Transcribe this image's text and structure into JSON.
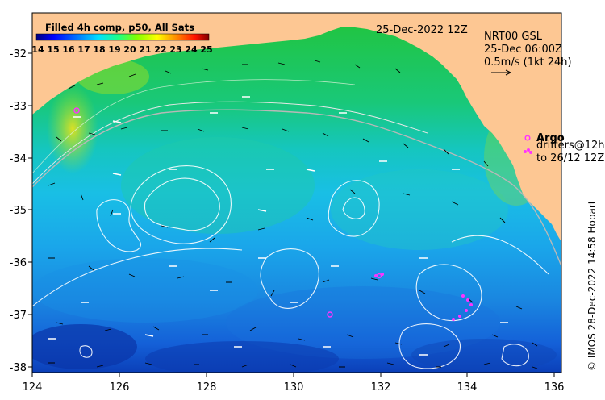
{
  "map": {
    "colorbar": {
      "title": "Filled 4h comp, p50, All Sats",
      "ticks": [
        "14",
        "15",
        "16",
        "17",
        "18",
        "19",
        "20",
        "21",
        "22",
        "23",
        "24",
        "25"
      ]
    },
    "date_label": "25-Dec-2022 12Z",
    "current_source": {
      "line1": "NRT00 GSL",
      "line2": "25-Dec 06:00Z",
      "scale_label": "0.5m/s (1kt 24h)"
    },
    "legend": {
      "argo_label": "Argo",
      "drifters_line1": "drifters@12h",
      "drifters_line2": "to 26/12 12Z"
    },
    "credit": "© IMOS 28-Dec-2022 14:58 Hobart",
    "x_ticks": [
      "124",
      "126",
      "128",
      "130",
      "132",
      "134",
      "136"
    ],
    "y_ticks": [
      "-32",
      "-33",
      "-34",
      "-35",
      "-36",
      "-37",
      "-38"
    ],
    "colors": {
      "land": "#fdc793",
      "argo": "#ff33ff",
      "contour": "#ffffff",
      "shelf": "#b0b0b0"
    }
  }
}
